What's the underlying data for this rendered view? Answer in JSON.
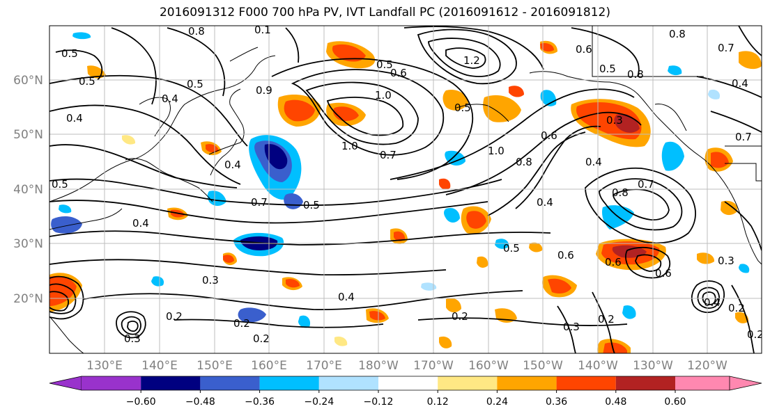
{
  "title": "2016091312 F000 700 hPa PV, IVT Landfall PC (2016091612 - 2016091812)",
  "lon_labels": [
    "130°E",
    "140°E",
    "150°E",
    "160°E",
    "170°E",
    "180°W",
    "170°W",
    "160°W",
    "150°W",
    "140°W",
    "130°W",
    "120°W"
  ],
  "lat_labels": [
    "20°N",
    "30°N",
    "40°N",
    "50°N",
    "60°N"
  ],
  "colorbar": {
    "ticks": [
      "−0.60",
      "−0.48",
      "−0.36",
      "−0.24",
      "−0.12",
      "0.12",
      "0.24",
      "0.36",
      "0.48",
      "0.60"
    ],
    "colors": [
      "#9932cc",
      "#000080",
      "#3a5fcd",
      "#00bfff",
      "#b0e2ff",
      "#ffffff",
      "#ffe884",
      "#ffa500",
      "#ff4500",
      "#b22222",
      "#ff88b0"
    ]
  },
  "contour_labels": [
    "0.8",
    "0.1",
    "0.5",
    "0.5",
    "0.4",
    "0.4",
    "0.5",
    "0.9",
    "0.5",
    "0.6",
    "1.2",
    "0.8",
    "0.7",
    "0.5",
    "0.6",
    "1.0",
    "0.5",
    "0.4",
    "0.8",
    "0.7",
    "1.0",
    "0.6",
    "0.8",
    "0.3",
    "0.5",
    "0.3",
    "0.6",
    "0.4",
    "0.8",
    "0.7",
    "0.4",
    "0.4",
    "0.4",
    "0.5",
    "0.6",
    "0.6",
    "0.2",
    "0.4",
    "0.2",
    "0.2",
    "0.3",
    "0.2",
    "0.3",
    "0.2",
    "0.2",
    "0.2",
    "0.5",
    "0.7",
    "0.3",
    "1.0",
    "0.4",
    "0.7"
  ]
}
